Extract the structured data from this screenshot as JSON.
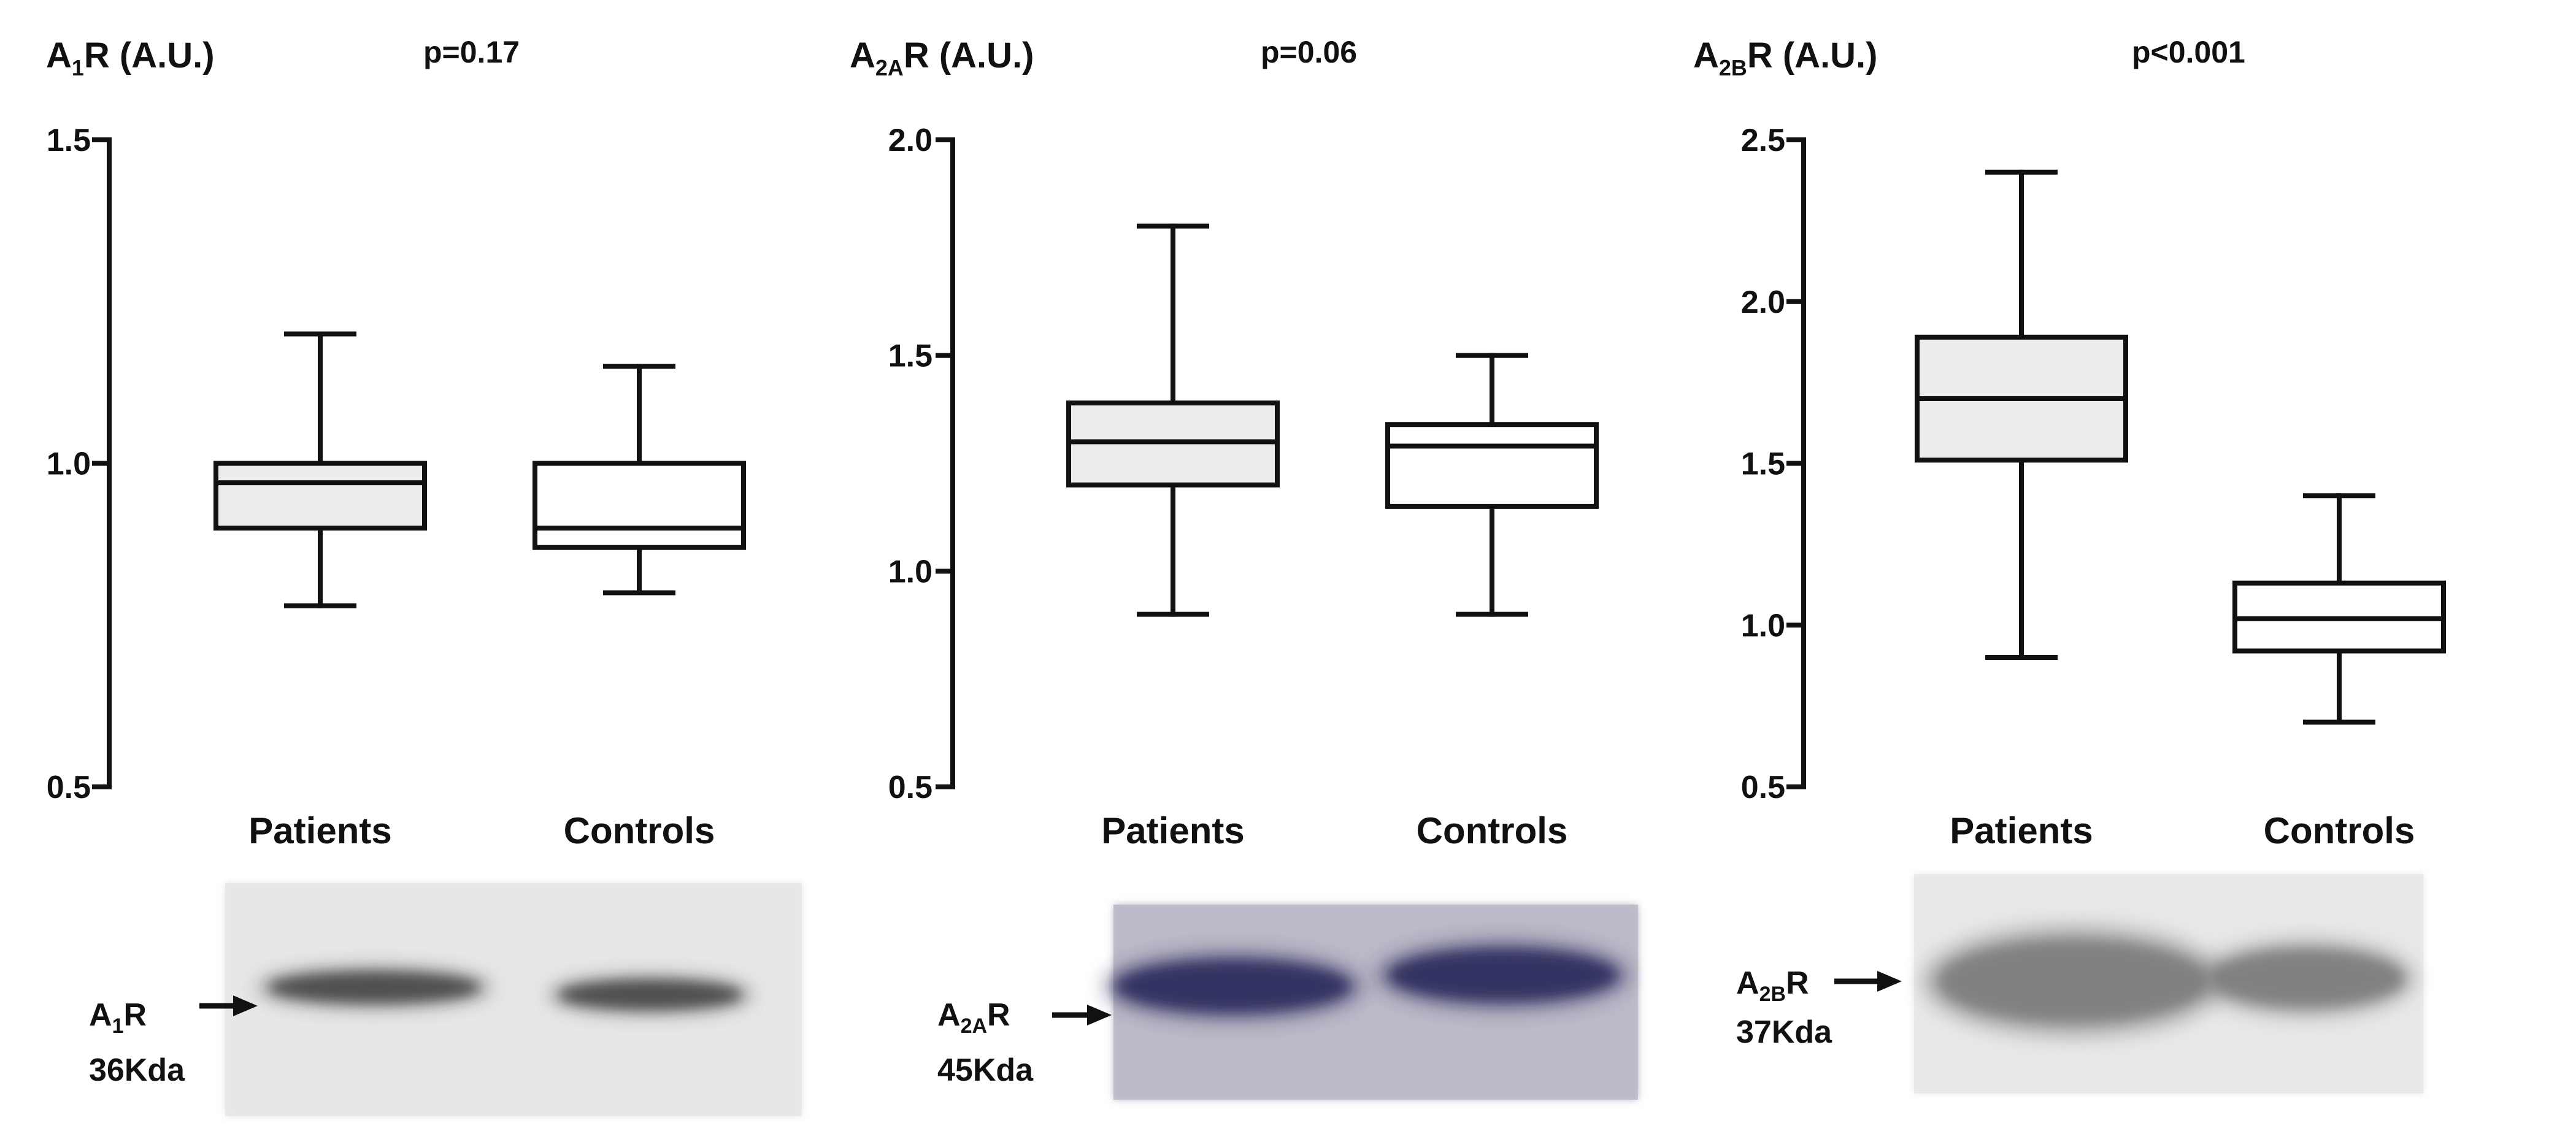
{
  "chart_data": [
    {
      "type": "box",
      "title": {
        "main": "A",
        "sub": "1",
        "rest": "R (A.U.)"
      },
      "pvalue": "p=0.17",
      "ylim": [
        0.5,
        1.5
      ],
      "yticks": [
        "0.5",
        "1.0",
        "1.5"
      ],
      "ytick_values": [
        0.5,
        1.0,
        1.5
      ],
      "categories": [
        "Patients",
        "Controls"
      ],
      "boxes": [
        {
          "group": "Patients",
          "min": 0.78,
          "q1": 0.9,
          "median": 0.97,
          "q3": 1.0,
          "max": 1.2,
          "fill": "#ececec"
        },
        {
          "group": "Controls",
          "min": 0.8,
          "q1": 0.87,
          "median": 0.9,
          "q3": 1.0,
          "max": 1.15,
          "fill": "#ffffff"
        }
      ],
      "blot": {
        "label": {
          "main": "A",
          "sub": "1",
          "rest": "R"
        },
        "weight": "36Kda",
        "bg": "#e6e6e6",
        "band_color": "#444444"
      }
    },
    {
      "type": "box",
      "title": {
        "main": "A",
        "sub": "2A",
        "rest": "R (A.U.)"
      },
      "pvalue": "p=0.06",
      "ylim": [
        0.5,
        2.0
      ],
      "yticks": [
        "0.5",
        "1.0",
        "1.5",
        "2.0"
      ],
      "ytick_values": [
        0.5,
        1.0,
        1.5,
        2.0
      ],
      "categories": [
        "Patients",
        "Controls"
      ],
      "boxes": [
        {
          "group": "Patients",
          "min": 0.9,
          "q1": 1.2,
          "median": 1.3,
          "q3": 1.39,
          "max": 1.8,
          "fill": "#ececec"
        },
        {
          "group": "Controls",
          "min": 0.9,
          "q1": 1.15,
          "median": 1.29,
          "q3": 1.34,
          "max": 1.5,
          "fill": "#ffffff"
        }
      ],
      "blot": {
        "label": {
          "main": "A",
          "sub": "2A",
          "rest": "R"
        },
        "weight": "45Kda",
        "bg": "#bcb8c8",
        "band_color": "#2a2a5c"
      }
    },
    {
      "type": "box",
      "title": {
        "main": "A",
        "sub": "2B",
        "rest": "R (A.U.)"
      },
      "pvalue": "p<0.001",
      "ylim": [
        0.5,
        2.5
      ],
      "yticks": [
        "0.5",
        "1.0",
        "1.5",
        "2.0",
        "2.5"
      ],
      "ytick_values": [
        0.5,
        1.0,
        1.5,
        2.0,
        2.5
      ],
      "categories": [
        "Patients",
        "Controls"
      ],
      "boxes": [
        {
          "group": "Patients",
          "min": 0.9,
          "q1": 1.51,
          "median": 1.7,
          "q3": 1.89,
          "max": 2.4,
          "fill": "#ececec"
        },
        {
          "group": "Controls",
          "min": 0.7,
          "q1": 0.92,
          "median": 1.02,
          "q3": 1.13,
          "max": 1.4,
          "fill": "#ffffff"
        }
      ],
      "blot": {
        "label": {
          "main": "A",
          "sub": "2B",
          "rest": "R"
        },
        "weight": "37Kda",
        "bg": "#e8e8e8",
        "band_color": "#7a7a7a"
      }
    }
  ]
}
